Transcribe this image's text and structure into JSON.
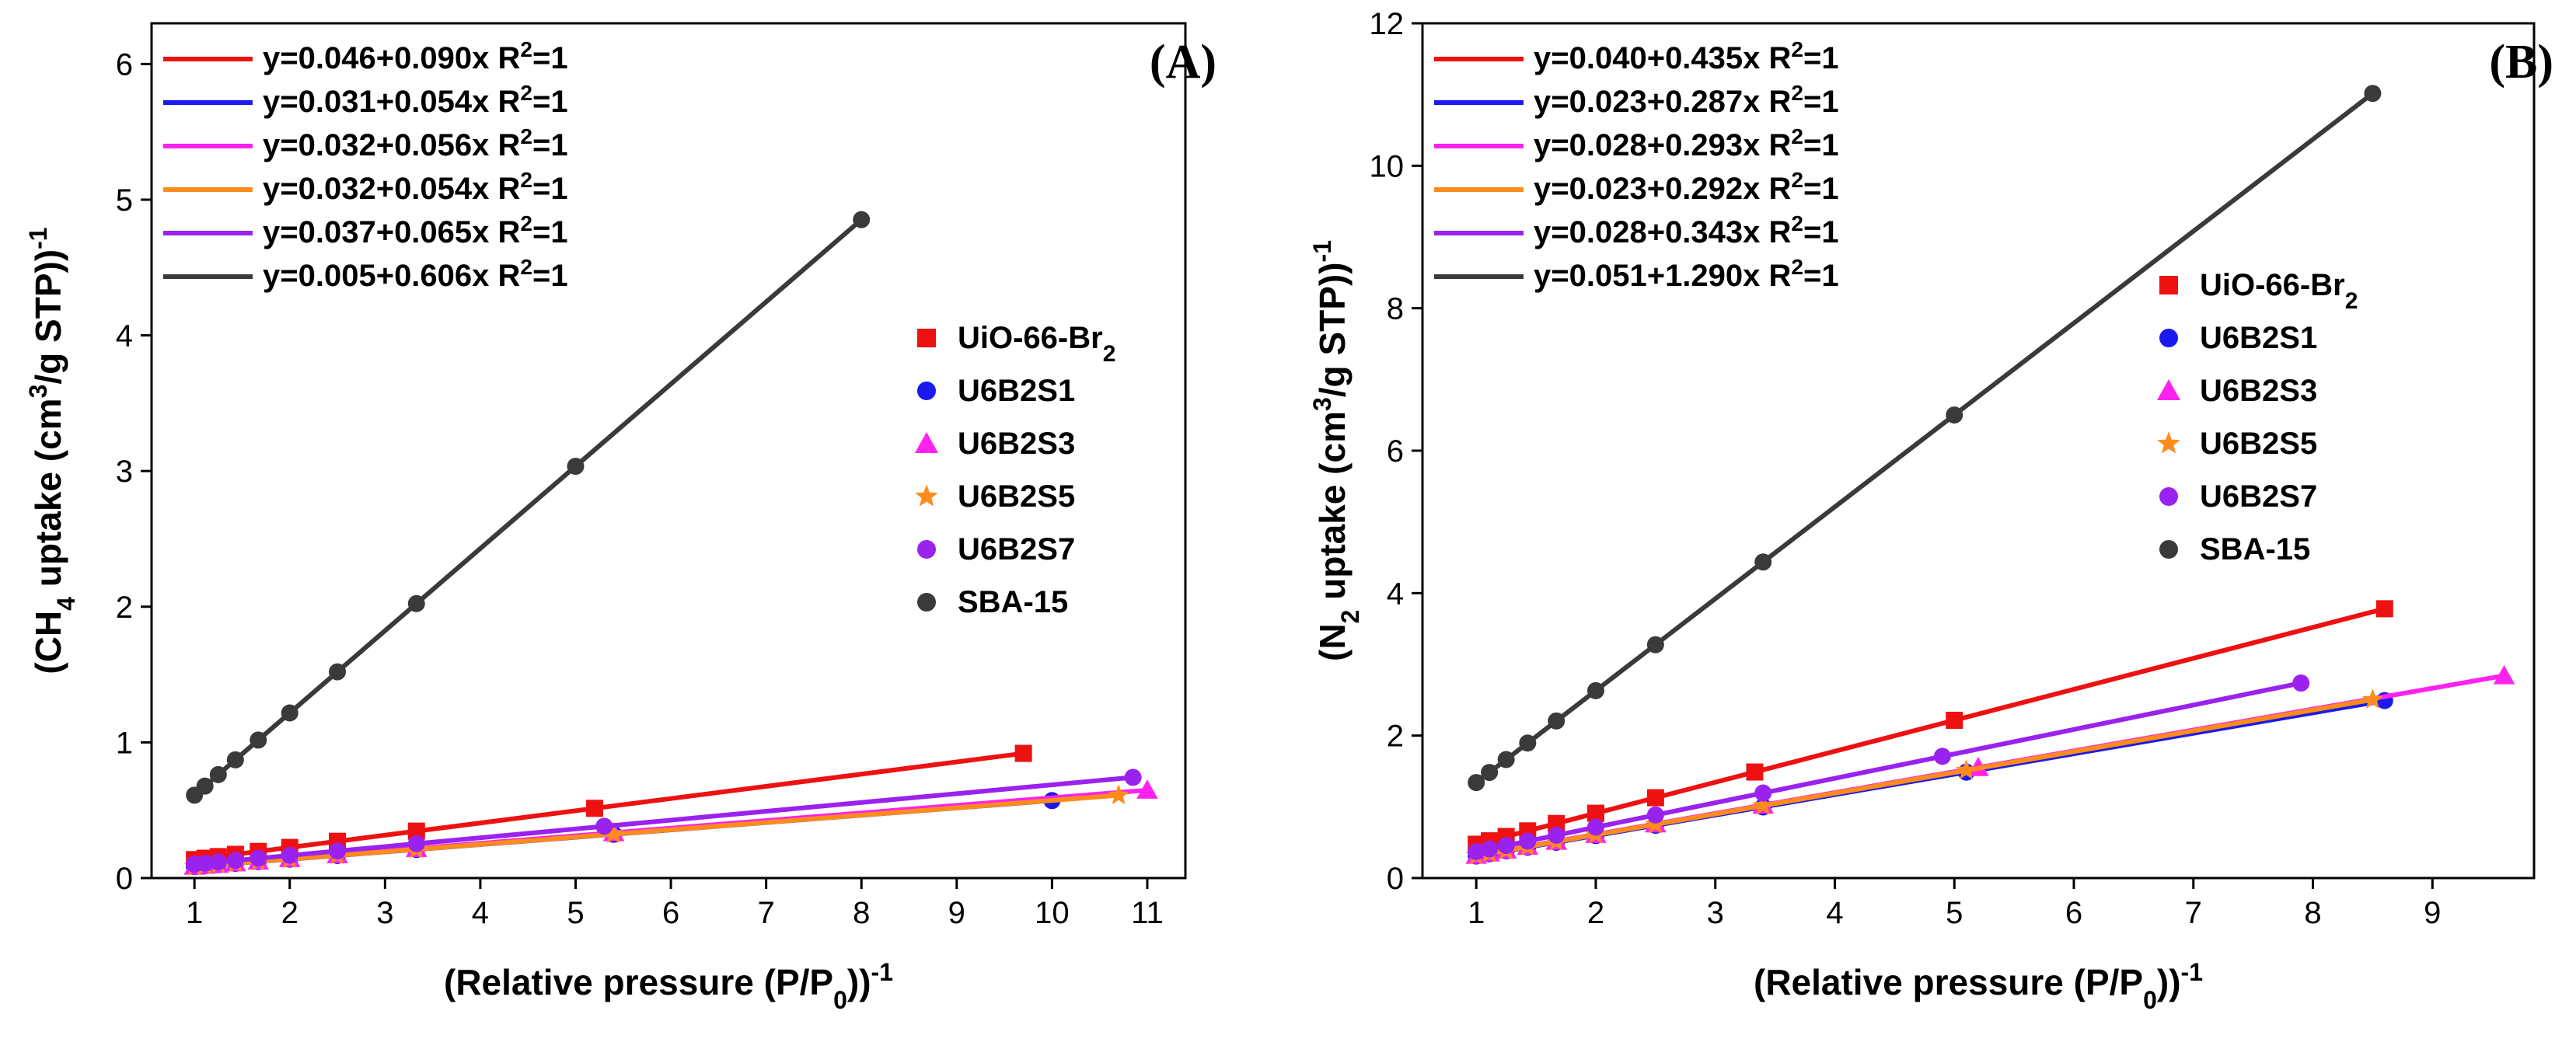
{
  "chart_data": [
    {
      "type": "scatter",
      "panel_label": "(A)",
      "xlabel_prefix": "(Relative pressure (P/P",
      "xlabel_sub": "0",
      "xlabel_suffix": "))",
      "xlabel_sup": "-1",
      "ylabel_prefix": "(CH",
      "ylabel_sub": "4",
      "ylabel_mid": " uptake (cm",
      "ylabel_sup": "3",
      "ylabel_suffix": "/g STP))",
      "ylabel_sup2": "-1",
      "xlim": [
        0.55,
        11.4
      ],
      "ylim": [
        0,
        6.3
      ],
      "xticks": [
        1,
        2,
        3,
        4,
        5,
        6,
        7,
        8,
        9,
        10,
        11
      ],
      "yticks": [
        0,
        1,
        2,
        3,
        4,
        5,
        6
      ],
      "fit_legend_position": "top-left",
      "marker_legend_position": "center-right",
      "series": [
        {
          "name": "UiO-66-Br",
          "name_sub": "2",
          "color": "#ee1111",
          "marker": "square",
          "intercept": 0.046,
          "slope": 0.09,
          "equation": "y=0.046+0.090x R",
          "eq_sup": "2",
          "eq_suffix": "=1",
          "x": [
            1.0,
            1.11,
            1.25,
            1.43,
            1.67,
            2.0,
            2.5,
            3.33,
            5.2,
            9.7
          ]
        },
        {
          "name": "U6B2S1",
          "name_sub": "",
          "color": "#1a1aee",
          "marker": "circle",
          "intercept": 0.031,
          "slope": 0.054,
          "equation": "y=0.031+0.054x R",
          "eq_sup": "2",
          "eq_suffix": "=1",
          "x": [
            1.0,
            1.11,
            1.25,
            1.43,
            1.67,
            2.0,
            2.5,
            3.33,
            5.4,
            10.0
          ]
        },
        {
          "name": "U6B2S3",
          "name_sub": "",
          "color": "#ff22ee",
          "marker": "triangle",
          "intercept": 0.032,
          "slope": 0.056,
          "equation": "y=0.032+0.056x R",
          "eq_sup": "2",
          "eq_suffix": "=1",
          "x": [
            1.0,
            1.11,
            1.25,
            1.43,
            1.67,
            2.0,
            2.5,
            3.33,
            5.4,
            11.0
          ]
        },
        {
          "name": "U6B2S5",
          "name_sub": "",
          "color": "#ff8c1a",
          "marker": "star",
          "intercept": 0.032,
          "slope": 0.054,
          "equation": "y=0.032+0.054x R",
          "eq_sup": "2",
          "eq_suffix": "=1",
          "x": [
            1.0,
            1.11,
            1.25,
            1.43,
            1.67,
            2.0,
            2.5,
            3.33,
            5.4,
            10.7
          ]
        },
        {
          "name": "U6B2S7",
          "name_sub": "",
          "color": "#9a22ee",
          "marker": "circle",
          "intercept": 0.037,
          "slope": 0.065,
          "equation": "y=0.037+0.065x R",
          "eq_sup": "2",
          "eq_suffix": "=1",
          "x": [
            1.0,
            1.11,
            1.25,
            1.43,
            1.67,
            2.0,
            2.5,
            3.33,
            5.3,
            10.85
          ]
        },
        {
          "name": "SBA-15",
          "name_sub": "",
          "color": "#3a3a3a",
          "marker": "circle",
          "intercept": 0.005,
          "slope": 0.606,
          "equation": "y=0.005+0.606x R",
          "eq_sup": "2",
          "eq_suffix": "=1",
          "x": [
            1.0,
            1.11,
            1.25,
            1.43,
            1.67,
            2.0,
            2.5,
            3.33,
            5.0,
            8.0
          ]
        }
      ]
    },
    {
      "type": "scatter",
      "panel_label": "(B)",
      "xlabel_prefix": "(Relative pressure (P/P",
      "xlabel_sub": "0",
      "xlabel_suffix": "))",
      "xlabel_sup": "-1",
      "ylabel_prefix": "(N",
      "ylabel_sub": "2",
      "ylabel_mid": " uptake (cm",
      "ylabel_sup": "3",
      "ylabel_suffix": "/g STP))",
      "ylabel_sup2": "-1",
      "xlim": [
        0.55,
        9.85
      ],
      "ylim": [
        0,
        12
      ],
      "xticks": [
        1,
        2,
        3,
        4,
        5,
        6,
        7,
        8,
        9
      ],
      "yticks": [
        0,
        2,
        4,
        6,
        8,
        10,
        12
      ],
      "fit_legend_position": "top-left",
      "marker_legend_position": "center-right",
      "series": [
        {
          "name": "UiO-66-Br",
          "name_sub": "2",
          "color": "#ee1111",
          "marker": "square",
          "intercept": 0.04,
          "slope": 0.435,
          "equation": "y=0.040+0.435x R",
          "eq_sup": "2",
          "eq_suffix": "=1",
          "x": [
            1.0,
            1.11,
            1.25,
            1.43,
            1.67,
            2.0,
            2.5,
            3.33,
            5.0,
            8.6
          ]
        },
        {
          "name": "U6B2S1",
          "name_sub": "",
          "color": "#1a1aee",
          "marker": "circle",
          "intercept": 0.023,
          "slope": 0.287,
          "equation": "y=0.023+0.287x R",
          "eq_sup": "2",
          "eq_suffix": "=1",
          "x": [
            1.0,
            1.11,
            1.25,
            1.43,
            1.67,
            2.0,
            2.5,
            3.4,
            5.1,
            8.6
          ]
        },
        {
          "name": "U6B2S3",
          "name_sub": "",
          "color": "#ff22ee",
          "marker": "triangle",
          "intercept": 0.028,
          "slope": 0.293,
          "equation": "y=0.028+0.293x R",
          "eq_sup": "2",
          "eq_suffix": "=1",
          "x": [
            1.0,
            1.11,
            1.25,
            1.43,
            1.67,
            2.0,
            2.5,
            3.4,
            5.2,
            9.6
          ]
        },
        {
          "name": "U6B2S5",
          "name_sub": "",
          "color": "#ff8c1a",
          "marker": "star",
          "intercept": 0.023,
          "slope": 0.292,
          "equation": "y=0.023+0.292x R",
          "eq_sup": "2",
          "eq_suffix": "=1",
          "x": [
            1.0,
            1.11,
            1.25,
            1.43,
            1.67,
            2.0,
            2.5,
            3.4,
            5.1,
            8.5
          ]
        },
        {
          "name": "U6B2S7",
          "name_sub": "",
          "color": "#9a22ee",
          "marker": "circle",
          "intercept": 0.028,
          "slope": 0.343,
          "equation": "y=0.028+0.343x R",
          "eq_sup": "2",
          "eq_suffix": "=1",
          "x": [
            1.0,
            1.11,
            1.25,
            1.43,
            1.67,
            2.0,
            2.5,
            3.4,
            4.9,
            7.9
          ]
        },
        {
          "name": "SBA-15",
          "name_sub": "",
          "color": "#3a3a3a",
          "marker": "circle",
          "intercept": 0.051,
          "slope": 1.29,
          "equation": "y=0.051+1.290x R",
          "eq_sup": "2",
          "eq_suffix": "=1",
          "x": [
            1.0,
            1.11,
            1.25,
            1.43,
            1.67,
            2.0,
            2.5,
            3.4,
            5.0,
            8.5
          ]
        }
      ]
    }
  ]
}
